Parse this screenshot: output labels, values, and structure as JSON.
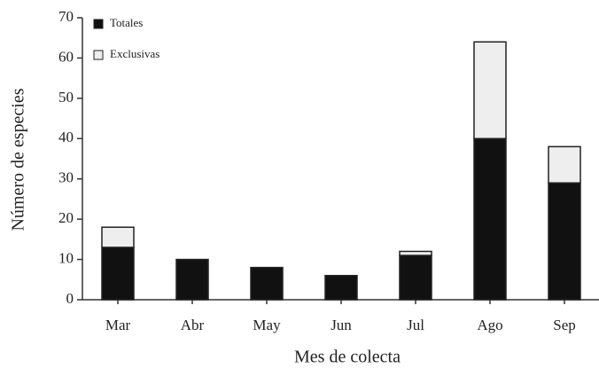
{
  "chart_data": {
    "type": "stacked_bar",
    "x_label": "Mes de colecta",
    "y_label": "Número de especies",
    "categories": [
      "Mar",
      "Abr",
      "May",
      "Jun",
      "Jul",
      "Ago",
      "Sep"
    ],
    "series": [
      {
        "name": "Totales",
        "color": "#111111",
        "values": [
          13,
          10,
          8,
          6,
          11,
          40,
          29
        ]
      },
      {
        "name": "Exclusivas",
        "color": "#eeeeee",
        "values": [
          5,
          0,
          0,
          0,
          1,
          24,
          9
        ]
      }
    ],
    "ylim": [
      0,
      70
    ],
    "yticks": [
      0,
      10,
      20,
      30,
      40,
      50,
      60,
      70
    ],
    "legend": "upper left"
  }
}
